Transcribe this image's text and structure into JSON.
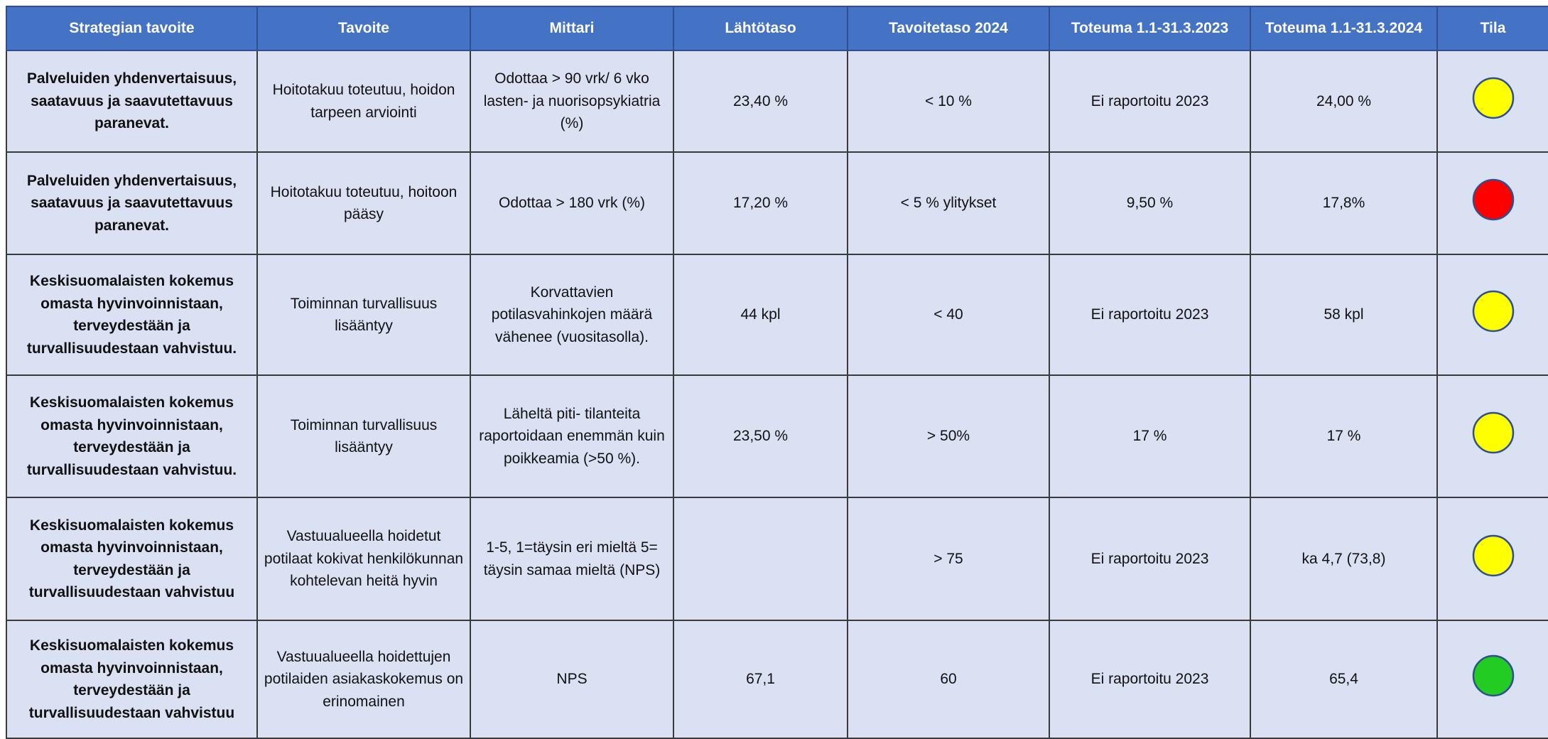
{
  "table": {
    "header": [
      "Strategian tavoite",
      "Tavoite",
      "Mittari",
      "Lähtötaso",
      "Tavoitetaso 2024",
      "Toteuma 1.1-31.3.2023",
      "Toteuma 1.1-31.3.2024",
      "Tila"
    ],
    "rows": [
      {
        "cells": [
          "Palveluiden yhdenvertaisuus, saatavuus ja saavutettavuus paranevat.",
          "Hoitotakuu toteutuu, hoidon tarpeen arviointi",
          "Odottaa > 90 vrk/ 6 vko lasten- ja nuorisopsykiatria (%)",
          "23,40 %",
          "< 10 %",
          "Ei raportoitu 2023",
          "24,00 %"
        ],
        "status": "#ffff00"
      },
      {
        "cells": [
          "Palveluiden yhdenvertaisuus, saatavuus ja saavutettavuus paranevat.",
          "Hoitotakuu toteutuu, hoitoon pääsy",
          "Odottaa > 180 vrk (%)",
          "17,20 %",
          "< 5 % ylitykset",
          "9,50 %",
          "17,8%"
        ],
        "status": "#ff0000"
      },
      {
        "cells": [
          "Keskisuomalaisten kokemus omasta hyvinvoinnistaan, terveydestään ja turvallisuudestaan vahvistuu.",
          "Toiminnan turvallisuus lisääntyy",
          "Korvattavien potilasvahinkojen määrä vähenee (vuositasolla).",
          "44 kpl",
          "< 40",
          "Ei raportoitu 2023",
          "58 kpl"
        ],
        "status": "#ffff00"
      },
      {
        "cells": [
          "Keskisuomalaisten kokemus omasta hyvinvoinnistaan, terveydestään ja turvallisuudestaan vahvistuu.",
          "Toiminnan turvallisuus lisääntyy",
          "Läheltä piti- tilanteita raportoidaan enemmän kuin poikkeamia (>50 %).",
          "23,50 %",
          "> 50%",
          "17 %",
          "17 %"
        ],
        "status": "#ffff00"
      },
      {
        "cells": [
          "Keskisuomalaisten kokemus omasta hyvinvoinnistaan, terveydestään ja turvallisuudestaan vahvistuu",
          "Vastuualueella hoidetut potilaat kokivat henkilökunnan kohtelevan heitä hyvin",
          "1-5, 1=täysin eri mieltä 5= täysin samaa mieltä (NPS)",
          null,
          "> 75",
          "Ei raportoitu 2023",
          "ka 4,7 (73,8)"
        ],
        "status": "#ffff00"
      },
      {
        "cells": [
          "Keskisuomalaisten kokemus omasta hyvinvoinnistaan, terveydestään ja turvallisuudestaan vahvistuu",
          "Vastuualueella hoidettujen potilaiden asiakaskokemus on erinomainen",
          "NPS",
          "67,1",
          "60",
          "Ei raportoitu 2023",
          "65,4"
        ],
        "status": "#22cc22"
      }
    ]
  }
}
